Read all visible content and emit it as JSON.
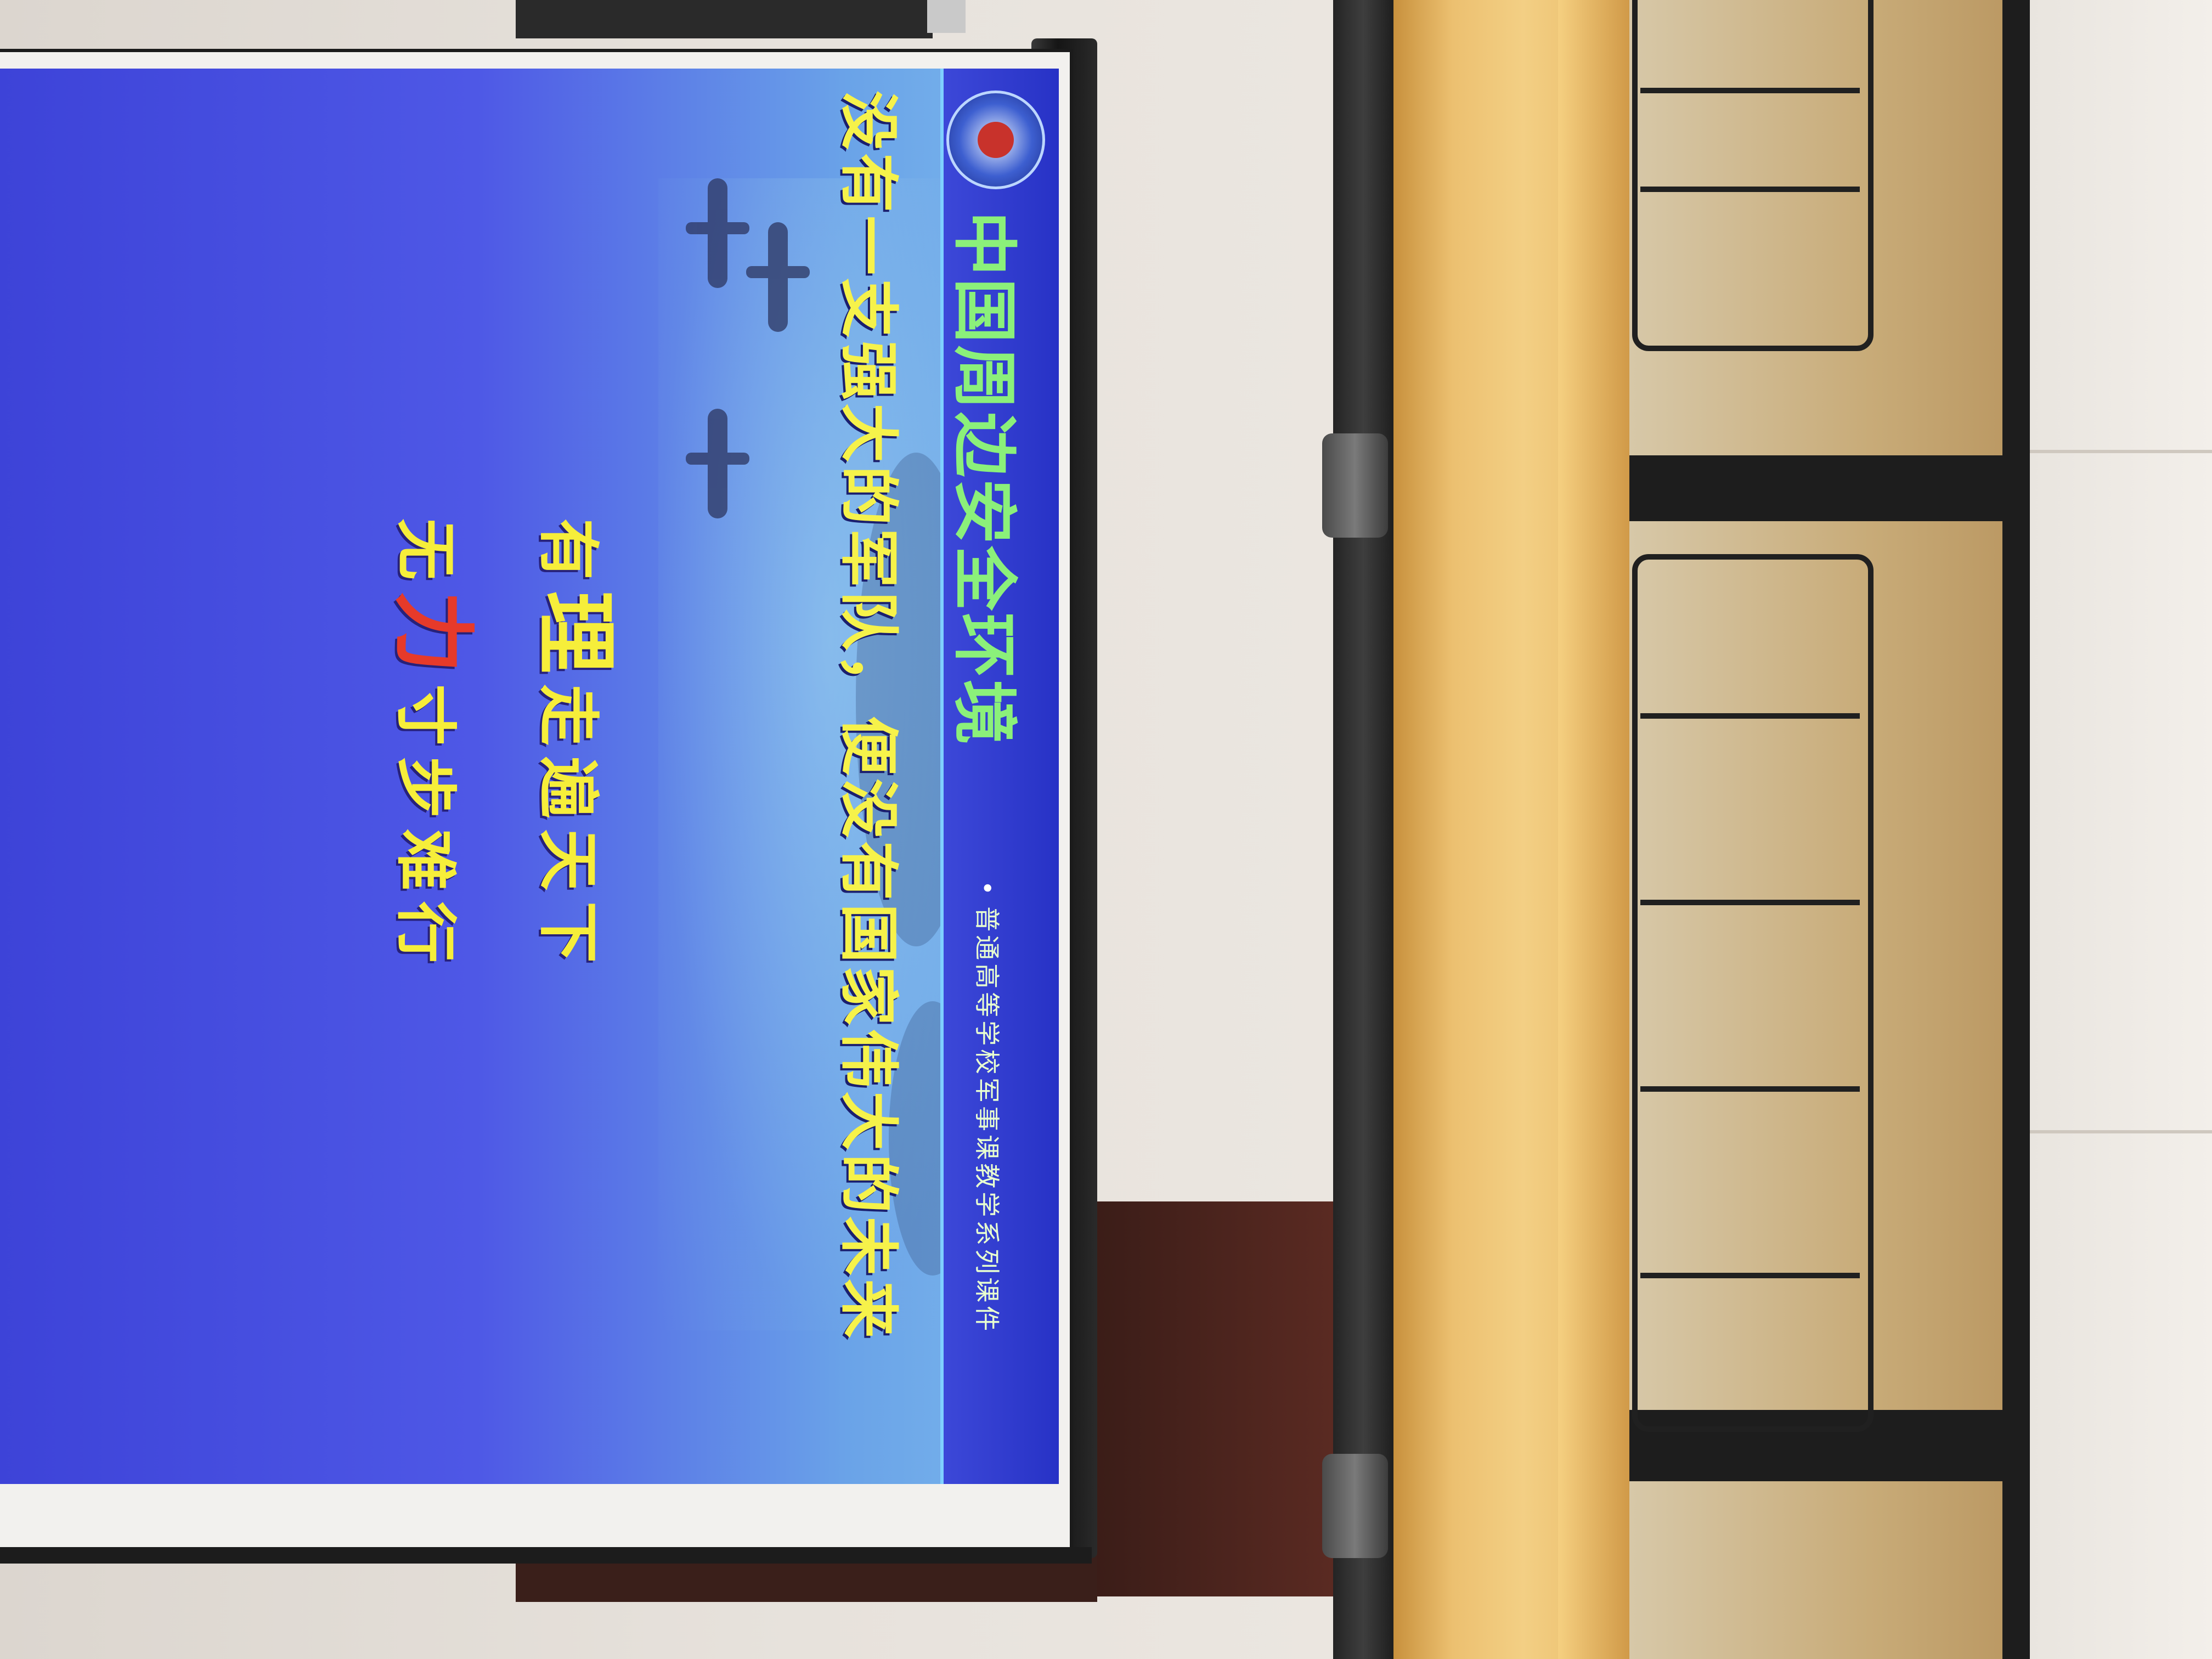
{
  "slide": {
    "section_title": "中国周边安全环境",
    "series_label": "普通高等学校军事课教学系列课件",
    "headline": "没有一支强大的军队，便没有国家伟大的未来",
    "proverb_line1": {
      "before": "有",
      "emphasis": "理",
      "after": "走遍天下"
    },
    "proverb_line2": {
      "before": "无",
      "emphasis": "力",
      "after": "寸步难行"
    }
  },
  "colors": {
    "title_green": "#8bf07a",
    "headline_yellow": "#f6f24a",
    "emphasis_red": "#e63a2a",
    "slide_blue": "#3d43d8"
  },
  "icons": {
    "logo": "emblem-icon"
  }
}
